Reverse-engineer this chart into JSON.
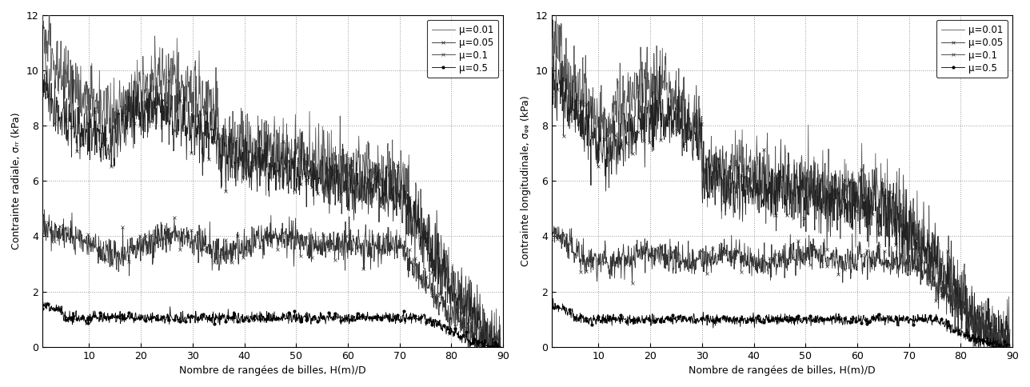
{
  "xlim": [
    1,
    90
  ],
  "ylim": [
    0,
    12
  ],
  "xticks": [
    10,
    20,
    30,
    40,
    50,
    60,
    70,
    80,
    90
  ],
  "yticks": [
    0,
    2,
    4,
    6,
    8,
    10,
    12
  ],
  "xlabel": "Nombre de rangées de billes, H(m)/D",
  "ylabel_left": "Contrainte radiale, σᵣᵣ (kPa)",
  "ylabel_right": "Contrainte longitudinale, σᵩᵩ (kPa)",
  "legend_labels": [
    "μ=0.01",
    "μ=0.05",
    "μ=0.1",
    "μ=0.5"
  ],
  "background_color": "#ffffff",
  "grid_color": "#999999",
  "grid_style": ":"
}
